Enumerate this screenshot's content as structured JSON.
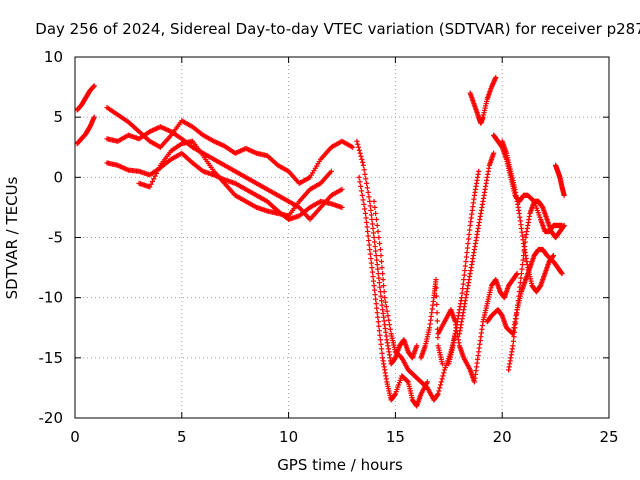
{
  "chart_data": {
    "type": "scatter",
    "title": "Day 256 of 2024, Sidereal Day-to-day VTEC variation (SDTVAR) for receiver p287",
    "xlabel": "GPS time / hours",
    "ylabel": "SDTVAR / TECUs",
    "xlim": [
      0,
      25
    ],
    "ylim": [
      -20,
      10
    ],
    "xticks": [
      "0",
      "5",
      "10",
      "15",
      "20",
      "25"
    ],
    "yticks": [
      "10",
      "5",
      "0",
      "-5",
      "-10",
      "-15",
      "-20"
    ],
    "grid": true,
    "marker": "plus",
    "color": "#ff0000",
    "series": [
      {
        "points": [
          [
            0.1,
            2.8
          ],
          [
            0.3,
            3.2
          ],
          [
            0.5,
            3.6
          ],
          [
            0.7,
            4.2
          ],
          [
            0.9,
            5.0
          ]
        ]
      },
      {
        "points": [
          [
            0.1,
            5.6
          ],
          [
            0.3,
            6.0
          ],
          [
            0.5,
            6.6
          ],
          [
            0.7,
            7.2
          ],
          [
            0.9,
            7.6
          ]
        ]
      },
      {
        "points": [
          [
            1.5,
            5.8
          ],
          [
            2.0,
            5.2
          ],
          [
            2.5,
            4.6
          ],
          [
            3.0,
            3.8
          ],
          [
            3.5,
            3.0
          ],
          [
            4.0,
            2.5
          ],
          [
            4.5,
            3.5
          ],
          [
            5.0,
            4.7
          ],
          [
            5.5,
            4.2
          ],
          [
            6.0,
            3.5
          ],
          [
            6.5,
            3.0
          ],
          [
            7.0,
            2.6
          ],
          [
            7.5,
            2.0
          ],
          [
            8.0,
            2.4
          ],
          [
            8.5,
            2.0
          ],
          [
            9.0,
            1.8
          ],
          [
            9.5,
            1.0
          ],
          [
            10.0,
            0.5
          ],
          [
            10.5,
            -0.5
          ],
          [
            11.0,
            0.0
          ],
          [
            11.5,
            1.5
          ],
          [
            12.0,
            2.5
          ],
          [
            12.5,
            3.0
          ],
          [
            13.0,
            2.5
          ]
        ]
      },
      {
        "points": [
          [
            1.5,
            3.2
          ],
          [
            2.0,
            3.0
          ],
          [
            2.5,
            3.5
          ],
          [
            3.0,
            3.2
          ],
          [
            3.5,
            3.8
          ],
          [
            4.0,
            4.2
          ],
          [
            4.5,
            3.8
          ],
          [
            5.0,
            3.2
          ],
          [
            5.5,
            2.5
          ],
          [
            6.0,
            2.0
          ],
          [
            6.5,
            1.5
          ],
          [
            7.0,
            1.0
          ],
          [
            7.5,
            0.5
          ],
          [
            8.0,
            0.0
          ],
          [
            8.5,
            -0.5
          ],
          [
            9.0,
            -1.0
          ],
          [
            9.5,
            -1.5
          ],
          [
            10.0,
            -2.0
          ],
          [
            10.5,
            -2.5
          ],
          [
            11.0,
            -3.5
          ],
          [
            11.5,
            -2.5
          ],
          [
            12.0,
            -1.5
          ],
          [
            12.5,
            -1.0
          ]
        ]
      },
      {
        "points": [
          [
            1.5,
            1.2
          ],
          [
            2.0,
            1.0
          ],
          [
            2.5,
            0.6
          ],
          [
            3.0,
            0.5
          ],
          [
            3.5,
            0.2
          ],
          [
            4.0,
            0.8
          ],
          [
            4.5,
            1.5
          ],
          [
            5.0,
            2.0
          ],
          [
            5.5,
            1.2
          ],
          [
            6.0,
            0.5
          ],
          [
            6.5,
            0.2
          ],
          [
            7.0,
            -0.2
          ],
          [
            7.5,
            -0.5
          ],
          [
            8.0,
            -1.0
          ],
          [
            8.5,
            -1.5
          ],
          [
            9.0,
            -2.0
          ],
          [
            9.5,
            -2.8
          ],
          [
            10.0,
            -3.5
          ],
          [
            10.5,
            -3.2
          ],
          [
            11.0,
            -2.5
          ],
          [
            11.5,
            -2.0
          ],
          [
            12.0,
            -2.2
          ],
          [
            12.5,
            -2.5
          ]
        ]
      },
      {
        "points": [
          [
            3.0,
            -0.5
          ],
          [
            3.5,
            -0.8
          ],
          [
            4.0,
            1.0
          ],
          [
            4.5,
            2.2
          ],
          [
            5.0,
            2.8
          ],
          [
            5.5,
            3.0
          ],
          [
            6.0,
            1.8
          ],
          [
            6.5,
            0.5
          ],
          [
            7.0,
            -0.5
          ],
          [
            7.5,
            -1.5
          ],
          [
            8.0,
            -2.0
          ],
          [
            8.5,
            -2.5
          ],
          [
            9.0,
            -2.8
          ],
          [
            9.5,
            -3.0
          ],
          [
            10.0,
            -3.2
          ],
          [
            10.5,
            -2.0
          ],
          [
            11.0,
            -1.0
          ],
          [
            11.5,
            -0.5
          ],
          [
            12.0,
            0.5
          ]
        ]
      },
      {
        "points": [
          [
            13.2,
            3.0
          ],
          [
            13.5,
            1.0
          ],
          [
            13.8,
            -2.0
          ],
          [
            14.0,
            -5.0
          ],
          [
            14.2,
            -8.0
          ],
          [
            14.4,
            -11.0
          ],
          [
            14.6,
            -13.5
          ],
          [
            14.8,
            -15.5
          ],
          [
            15.0,
            -15.0
          ],
          [
            15.2,
            -14.0
          ],
          [
            15.4,
            -13.5
          ],
          [
            15.6,
            -14.5
          ],
          [
            15.8,
            -15.0
          ],
          [
            16.0,
            -14.0
          ]
        ]
      },
      {
        "points": [
          [
            13.3,
            0.0
          ],
          [
            13.6,
            -3.0
          ],
          [
            13.8,
            -6.0
          ],
          [
            14.0,
            -9.0
          ],
          [
            14.2,
            -12.0
          ],
          [
            14.4,
            -15.0
          ],
          [
            14.6,
            -17.0
          ],
          [
            14.8,
            -18.5
          ],
          [
            15.0,
            -18.0
          ],
          [
            15.3,
            -16.5
          ],
          [
            15.6,
            -17.0
          ],
          [
            15.8,
            -18.5
          ],
          [
            16.0,
            -19.0
          ],
          [
            16.2,
            -18.0
          ],
          [
            16.5,
            -17.0
          ]
        ]
      },
      {
        "points": [
          [
            14.0,
            -2.0
          ],
          [
            14.3,
            -6.0
          ],
          [
            14.5,
            -10.0
          ],
          [
            14.8,
            -13.0
          ],
          [
            15.0,
            -14.5
          ],
          [
            15.3,
            -15.0
          ],
          [
            15.6,
            -16.0
          ],
          [
            15.9,
            -16.5
          ],
          [
            16.2,
            -17.0
          ],
          [
            16.5,
            -17.5
          ],
          [
            16.8,
            -18.5
          ],
          [
            17.0,
            -18.0
          ],
          [
            17.3,
            -16.0
          ],
          [
            17.6,
            -14.5
          ],
          [
            17.8,
            -13.0
          ]
        ]
      },
      {
        "points": [
          [
            16.2,
            -15.0
          ],
          [
            16.4,
            -14.0
          ],
          [
            16.6,
            -12.5
          ],
          [
            16.8,
            -10.0
          ],
          [
            16.9,
            -8.5
          ],
          [
            17.0,
            -14.0
          ],
          [
            17.2,
            -15.5
          ]
        ]
      },
      {
        "points": [
          [
            17.5,
            -15.5
          ],
          [
            17.7,
            -14.0
          ],
          [
            17.9,
            -12.0
          ],
          [
            18.1,
            -10.0
          ],
          [
            18.3,
            -7.0
          ],
          [
            18.5,
            -4.0
          ],
          [
            18.7,
            -1.5
          ],
          [
            18.9,
            0.5
          ]
        ]
      },
      {
        "points": [
          [
            17.0,
            -13.0
          ],
          [
            17.3,
            -12.0
          ],
          [
            17.6,
            -11.0
          ],
          [
            17.8,
            -12.0
          ],
          [
            18.0,
            -14.0
          ],
          [
            18.2,
            -15.0
          ],
          [
            18.5,
            -16.0
          ],
          [
            18.7,
            -17.0
          ],
          [
            18.9,
            -14.5
          ],
          [
            19.1,
            -12.0
          ],
          [
            19.3,
            -10.5
          ],
          [
            19.5,
            -9.0
          ],
          [
            19.7,
            -8.5
          ],
          [
            19.9,
            -9.5
          ],
          [
            20.1,
            -10.0
          ],
          [
            20.3,
            -9.0
          ],
          [
            20.5,
            -8.5
          ],
          [
            20.7,
            -8.0
          ]
        ]
      },
      {
        "points": [
          [
            18.0,
            -13.0
          ],
          [
            18.2,
            -11.0
          ],
          [
            18.4,
            -9.0
          ],
          [
            18.6,
            -7.0
          ],
          [
            18.8,
            -5.0
          ],
          [
            19.0,
            -3.0
          ],
          [
            19.2,
            -1.0
          ],
          [
            19.4,
            1.0
          ],
          [
            19.6,
            2.0
          ]
        ]
      },
      {
        "points": [
          [
            18.5,
            7.0
          ],
          [
            18.7,
            6.0
          ],
          [
            18.9,
            5.0
          ],
          [
            19.0,
            4.5
          ],
          [
            19.1,
            5.0
          ],
          [
            19.3,
            6.5
          ],
          [
            19.5,
            7.5
          ],
          [
            19.7,
            8.3
          ]
        ]
      },
      {
        "points": [
          [
            19.6,
            3.5
          ],
          [
            19.8,
            3.0
          ],
          [
            20.0,
            2.5
          ],
          [
            20.2,
            1.5
          ],
          [
            20.4,
            0.0
          ],
          [
            20.6,
            -1.5
          ],
          [
            20.8,
            -2.0
          ],
          [
            21.0,
            -1.5
          ],
          [
            21.2,
            -1.5
          ],
          [
            21.5,
            -2.0
          ],
          [
            21.8,
            -3.5
          ],
          [
            22.0,
            -4.5
          ],
          [
            22.2,
            -4.5
          ],
          [
            22.4,
            -4.0
          ],
          [
            22.6,
            -4.0
          ],
          [
            22.8,
            -4.0
          ]
        ]
      },
      {
        "points": [
          [
            19.3,
            -12.0
          ],
          [
            19.5,
            -11.5
          ],
          [
            19.8,
            -11.0
          ],
          [
            20.0,
            -11.5
          ],
          [
            20.2,
            -12.5
          ],
          [
            20.5,
            -13.0
          ],
          [
            20.7,
            -11.0
          ],
          [
            20.9,
            -9.5
          ],
          [
            21.1,
            -8.5
          ],
          [
            21.3,
            -7.5
          ],
          [
            21.5,
            -6.5
          ],
          [
            21.7,
            -6.0
          ],
          [
            21.9,
            -6.0
          ],
          [
            22.1,
            -6.5
          ],
          [
            22.4,
            -7.0
          ],
          [
            22.6,
            -7.5
          ],
          [
            22.8,
            -8.0
          ]
        ]
      },
      {
        "points": [
          [
            20.3,
            -16.0
          ],
          [
            20.5,
            -14.0
          ],
          [
            20.7,
            -11.0
          ],
          [
            20.9,
            -8.0
          ],
          [
            21.1,
            -5.0
          ],
          [
            21.3,
            -3.0
          ],
          [
            21.5,
            -2.0
          ],
          [
            21.7,
            -2.0
          ],
          [
            21.9,
            -2.5
          ],
          [
            22.1,
            -3.5
          ],
          [
            22.3,
            -4.5
          ],
          [
            22.5,
            -5.0
          ],
          [
            22.7,
            -4.5
          ],
          [
            22.9,
            -4.0
          ]
        ]
      },
      {
        "points": [
          [
            22.5,
            1.0
          ],
          [
            22.6,
            0.5
          ],
          [
            22.7,
            0.0
          ],
          [
            22.8,
            -0.8
          ],
          [
            22.9,
            -1.5
          ]
        ]
      },
      {
        "points": [
          [
            20.0,
            3.0
          ],
          [
            20.2,
            2.0
          ],
          [
            20.4,
            0.5
          ],
          [
            20.6,
            -1.0
          ],
          [
            20.8,
            -3.0
          ],
          [
            21.0,
            -5.5
          ],
          [
            21.2,
            -7.5
          ],
          [
            21.4,
            -9.0
          ],
          [
            21.6,
            -9.5
          ],
          [
            21.8,
            -9.0
          ],
          [
            22.0,
            -8.0
          ],
          [
            22.2,
            -7.0
          ],
          [
            22.4,
            -6.5
          ]
        ]
      }
    ]
  }
}
